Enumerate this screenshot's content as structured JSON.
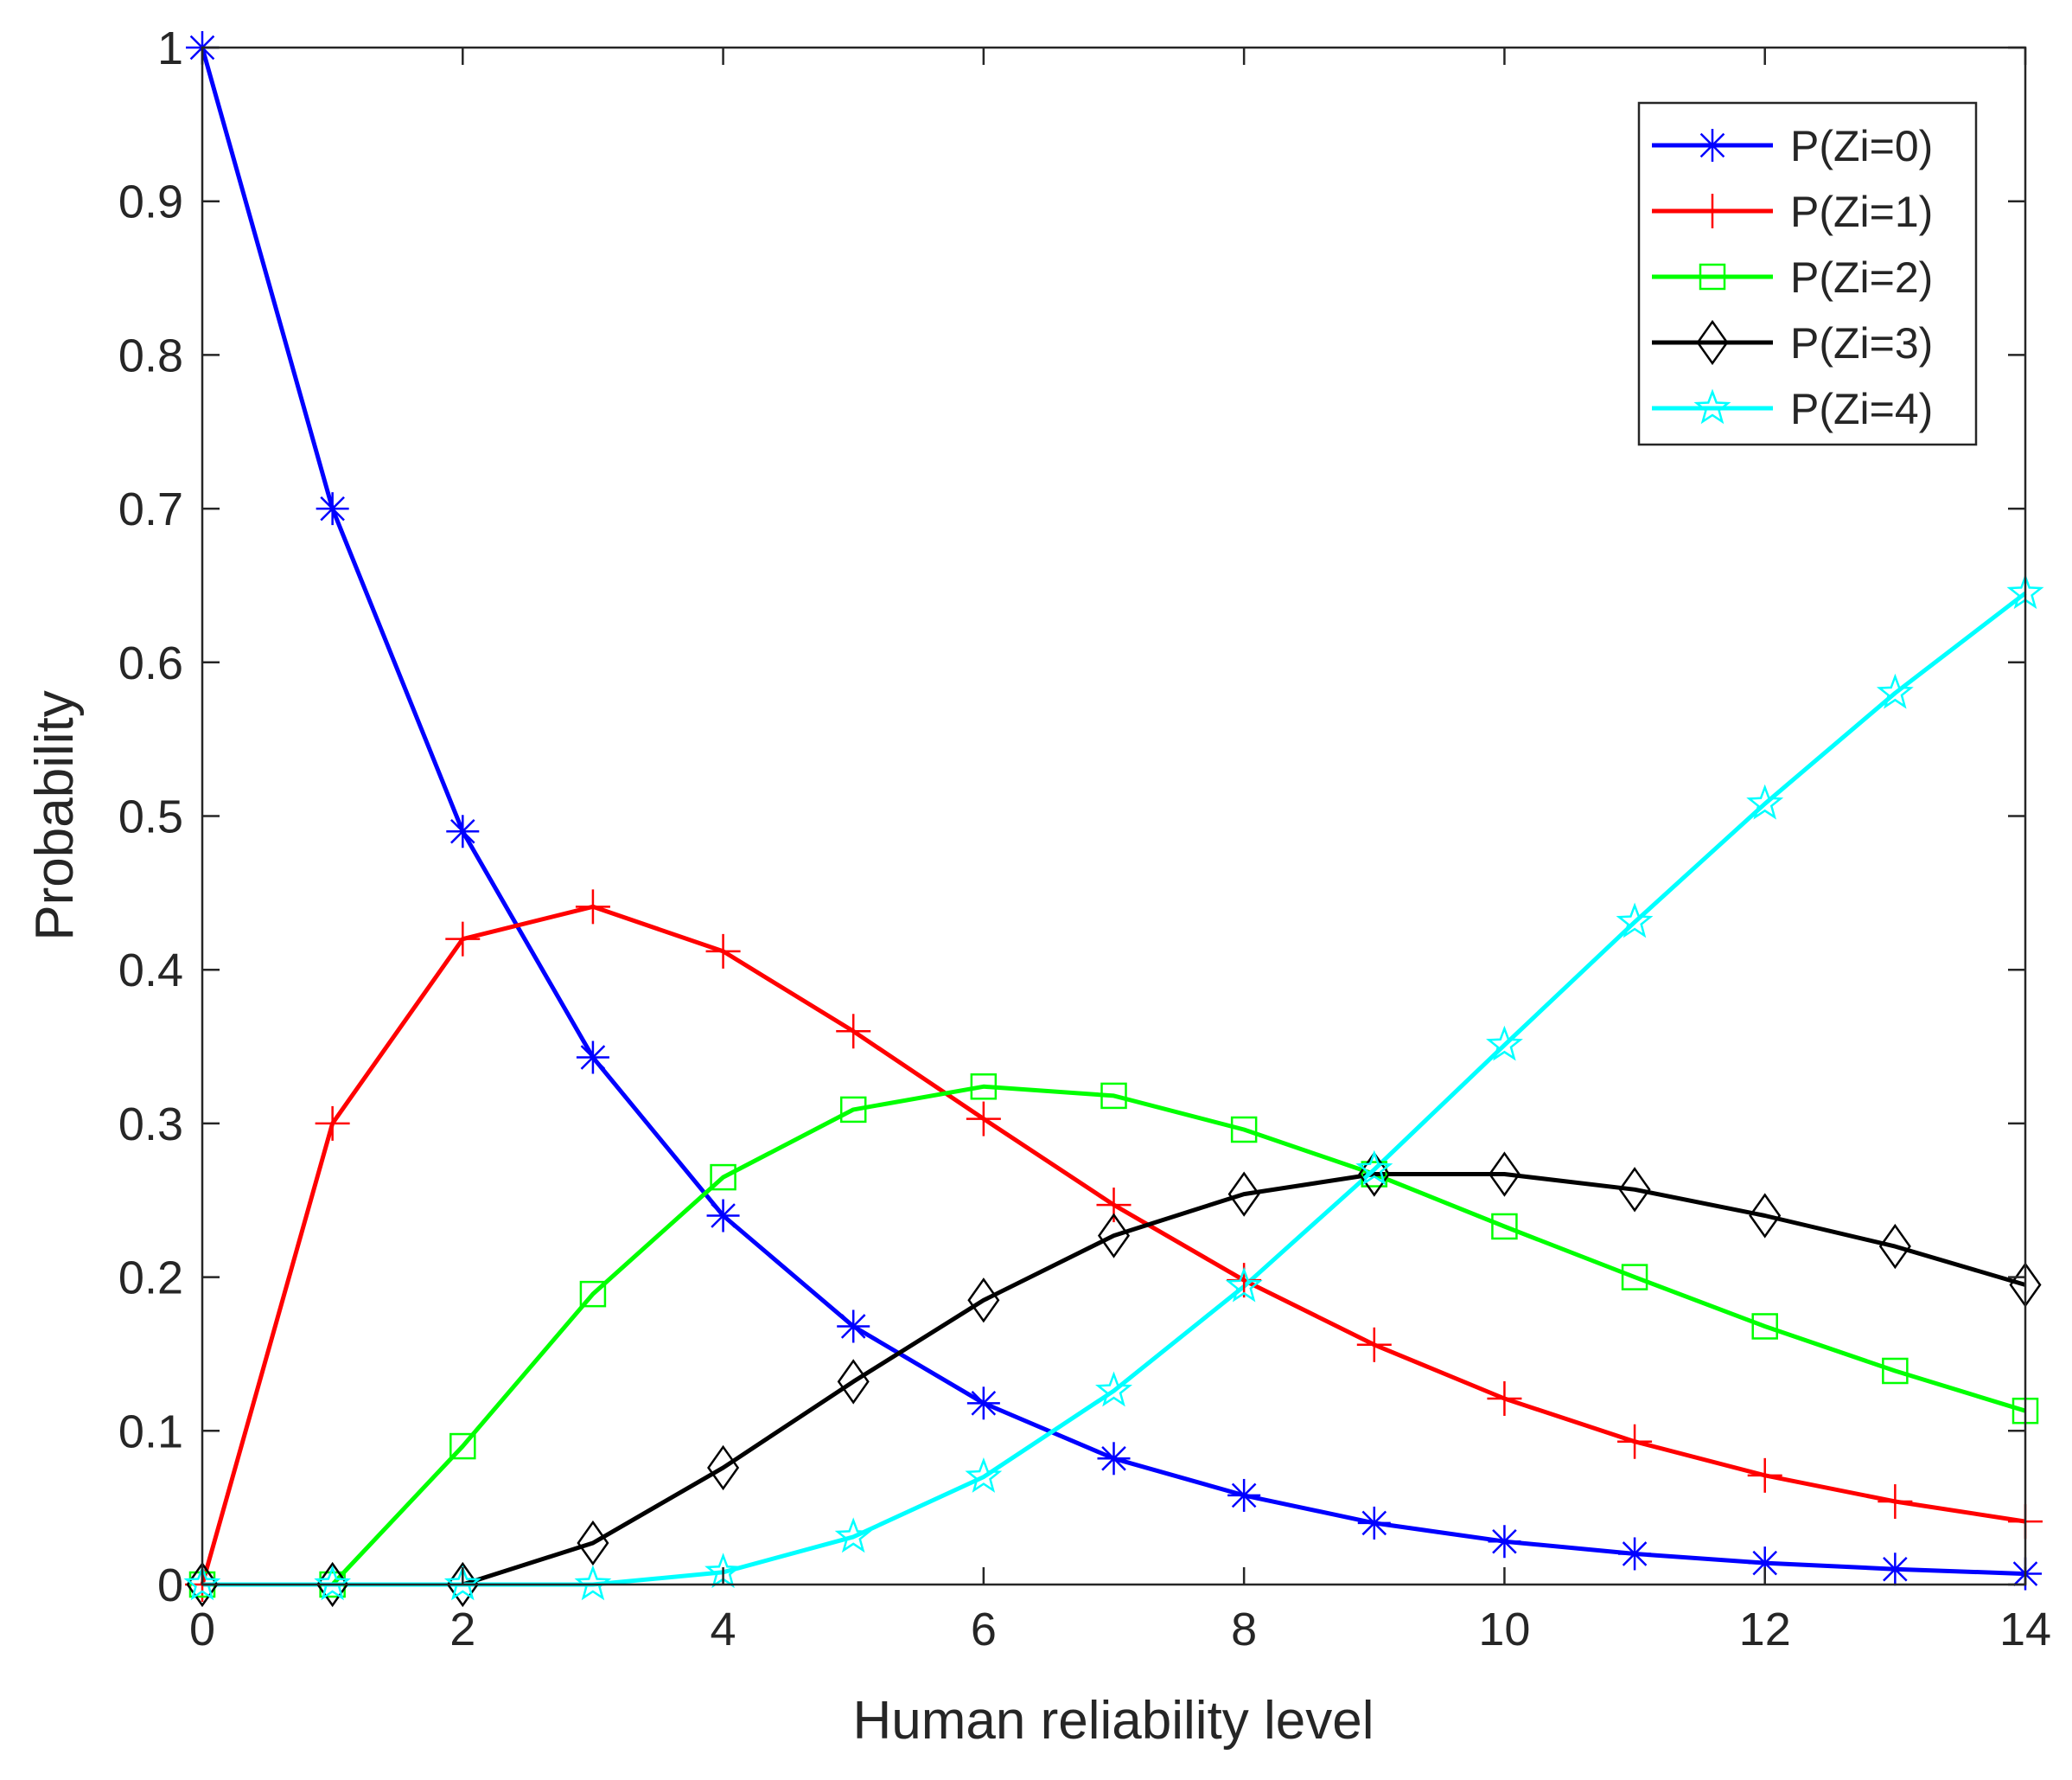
{
  "chart_data": {
    "type": "line",
    "title": "",
    "xlabel": "Human reliability level",
    "ylabel": "Probability",
    "xlim": [
      0,
      14
    ],
    "ylim": [
      0,
      1
    ],
    "xticks": [
      0,
      2,
      4,
      6,
      8,
      10,
      12,
      14
    ],
    "yticks": [
      0,
      0.1,
      0.2,
      0.3,
      0.4,
      0.5,
      0.6,
      0.7,
      0.8,
      0.9,
      1
    ],
    "x": [
      0,
      1,
      2,
      3,
      4,
      5,
      6,
      7,
      8,
      9,
      10,
      11,
      12,
      13,
      14
    ],
    "legend_position": "top-right",
    "grid": false,
    "series": [
      {
        "name": "P(Zi=0)",
        "color": "#0000ff",
        "marker": "asterisk",
        "values": [
          1.0,
          0.7,
          0.49,
          0.343,
          0.24,
          0.168,
          0.118,
          0.082,
          0.058,
          0.04,
          0.028,
          0.02,
          0.014,
          0.01,
          0.007
        ]
      },
      {
        "name": "P(Zi=1)",
        "color": "#ff0000",
        "marker": "plus",
        "values": [
          0.0,
          0.3,
          0.42,
          0.441,
          0.412,
          0.36,
          0.303,
          0.247,
          0.198,
          0.156,
          0.121,
          0.093,
          0.071,
          0.054,
          0.041
        ]
      },
      {
        "name": "P(Zi=2)",
        "color": "#00ff00",
        "marker": "square",
        "values": [
          0.0,
          0.0,
          0.09,
          0.189,
          0.265,
          0.309,
          0.324,
          0.318,
          0.296,
          0.267,
          0.233,
          0.2,
          0.168,
          0.139,
          0.113
        ]
      },
      {
        "name": "P(Zi=3)",
        "color": "#000000",
        "marker": "diamond",
        "values": [
          0.0,
          0.0,
          0.0,
          0.027,
          0.076,
          0.132,
          0.185,
          0.227,
          0.254,
          0.267,
          0.267,
          0.257,
          0.24,
          0.22,
          0.195
        ]
      },
      {
        "name": "P(Zi=4)",
        "color": "#00ffff",
        "marker": "star",
        "values": [
          0.0,
          0.0,
          0.0,
          0.0,
          0.008,
          0.031,
          0.07,
          0.126,
          0.194,
          0.27,
          0.351,
          0.431,
          0.508,
          0.58,
          0.645
        ]
      }
    ]
  }
}
